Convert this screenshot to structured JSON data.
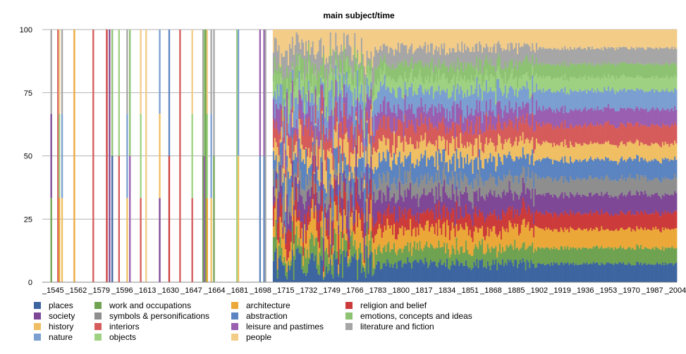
{
  "chart_data": {
    "type": "stacked-bar",
    "title": "main subject/time",
    "xlabel": "",
    "ylabel": "",
    "ylim": [
      0,
      100
    ],
    "y_ticks": [
      "0",
      "25",
      "50",
      "75",
      "100"
    ],
    "x_range": [
      1545,
      2012
    ],
    "x_ticks": [
      "_1545",
      "_1562",
      "_1579",
      "_1596",
      "_1613",
      "_1630",
      "_1647",
      "_1664",
      "_1681",
      "_1698",
      "_1715",
      "_1732",
      "_1749",
      "_1766",
      "_1783",
      "_1800",
      "_1817",
      "_1834",
      "_1851",
      "_1868",
      "_1885",
      "_1902",
      "_1919",
      "_1936",
      "_1953",
      "_1970",
      "_1987",
      "_2004"
    ],
    "grid": true,
    "legend_position": "bottom-left",
    "series": [
      {
        "name": "places",
        "color": "#3d65a0"
      },
      {
        "name": "society",
        "color": "#7e4896"
      },
      {
        "name": "history",
        "color": "#f0bf64"
      },
      {
        "name": "nature",
        "color": "#7b9fd1"
      },
      {
        "name": "work and occupations",
        "color": "#6fa251"
      },
      {
        "name": "symbols & personifications",
        "color": "#8e8e8e"
      },
      {
        "name": "interiors",
        "color": "#d65b5b"
      },
      {
        "name": "objects",
        "color": "#9fd182"
      },
      {
        "name": "architecture",
        "color": "#eba838"
      },
      {
        "name": "abstraction",
        "color": "#5b84c0"
      },
      {
        "name": "leisure and pastimes",
        "color": "#9a5fb0"
      },
      {
        "name": "people",
        "color": "#f3cc88"
      },
      {
        "name": "religion and belief",
        "color": "#cc3b3b"
      },
      {
        "name": "emotions, concepts and ideas",
        "color": "#8dc272"
      },
      {
        "name": "literature and fiction",
        "color": "#a6a6a6"
      }
    ],
    "stack_order_bottom_to_top": [
      "places",
      "work and occupations",
      "architecture",
      "religion and belief",
      "society",
      "symbols & personifications",
      "abstraction",
      "history",
      "interiors",
      "leisure and pastimes",
      "nature",
      "objects",
      "emotions, concepts and ideas",
      "literature and fiction",
      "people"
    ],
    "modern_shares_percent": {
      "places": 7,
      "work and occupations": 6,
      "architecture": 7,
      "religion and belief": 6,
      "society": 7,
      "symbols & personifications": 6,
      "abstraction": 7,
      "history": 6,
      "interiors": 7,
      "leisure and pastimes": 6,
      "nature": 7,
      "objects": 5,
      "emotions, concepts and ideas": 5,
      "literature and fiction": 6,
      "people": 7
    },
    "dense_data_start_year": 1715
  }
}
